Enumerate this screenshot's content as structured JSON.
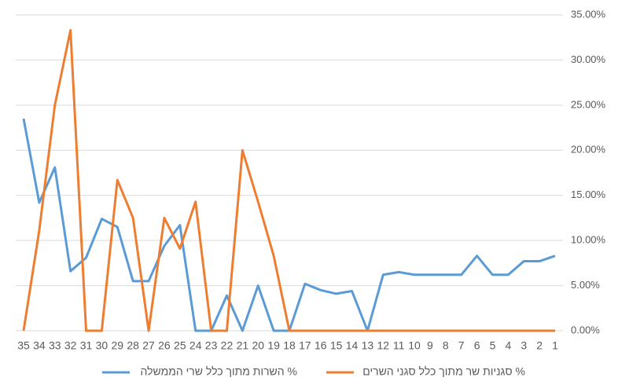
{
  "chart_data": {
    "type": "line",
    "categories": [
      "35",
      "34",
      "33",
      "32",
      "31",
      "30",
      "29",
      "28",
      "27",
      "26",
      "25",
      "24",
      "23",
      "22",
      "21",
      "20",
      "19",
      "18",
      "17",
      "16",
      "15",
      "14",
      "13",
      "12",
      "11",
      "10",
      "9",
      "8",
      "7",
      "6",
      "5",
      "4",
      "3",
      "2",
      "1"
    ],
    "series": [
      {
        "name": "% השרות מתוך כלל שרי הממשלה",
        "color": "#5b9bd5",
        "values": [
          23.5,
          14.2,
          18.1,
          6.6,
          8.1,
          12.4,
          11.5,
          5.5,
          5.5,
          9.4,
          11.7,
          0,
          0,
          3.9,
          0,
          5.0,
          0,
          0,
          5.2,
          4.5,
          4.1,
          4.4,
          0,
          6.2,
          6.5,
          6.2,
          6.2,
          6.2,
          6.2,
          8.3,
          6.2,
          6.2,
          7.7,
          7.7,
          8.3
        ]
      },
      {
        "name": "% סגניות שר מתוך כלל סגני השרים",
        "color": "#ed7d31",
        "values": [
          0,
          11.1,
          25,
          33.3,
          0,
          0,
          16.7,
          12.5,
          0,
          12.5,
          9.1,
          14.3,
          0,
          0,
          20,
          14.3,
          8.3,
          0,
          0,
          0,
          0,
          0,
          0,
          0,
          0,
          0,
          0,
          0,
          0,
          0,
          0,
          0,
          0,
          0,
          0
        ]
      }
    ],
    "ylim": [
      0,
      35
    ],
    "yticks": [
      {
        "value": 0,
        "label": "0.00%"
      },
      {
        "value": 5,
        "label": "5.00%"
      },
      {
        "value": 10,
        "label": "10.00%"
      },
      {
        "value": 15,
        "label": "15.00%"
      },
      {
        "value": 20,
        "label": "20.00%"
      },
      {
        "value": 25,
        "label": "25.00%"
      },
      {
        "value": 30,
        "label": "30.00%"
      },
      {
        "value": 35,
        "label": "35.00%"
      }
    ],
    "grid": true,
    "legend": "bottom"
  }
}
